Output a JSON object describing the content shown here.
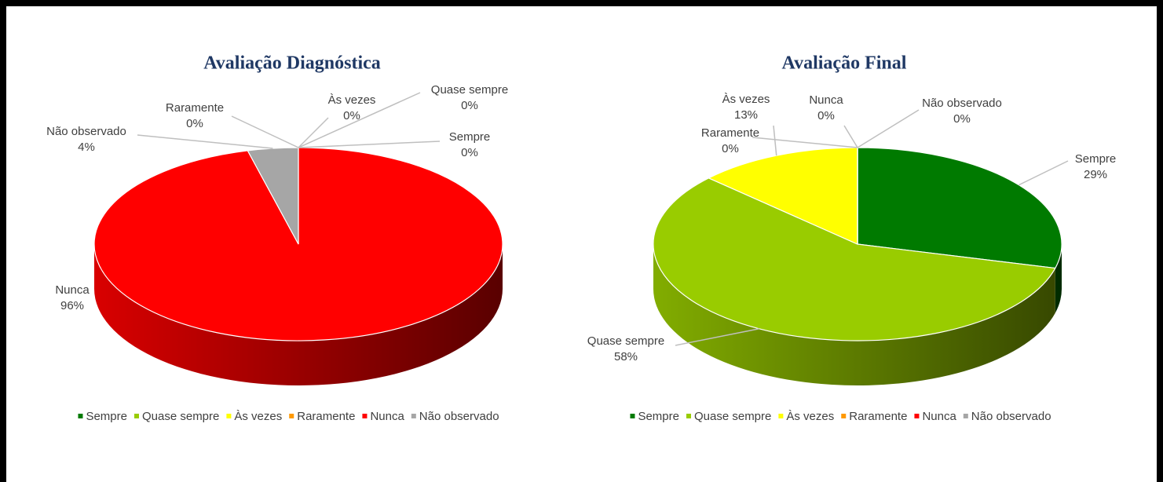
{
  "chart_data": [
    {
      "type": "pie",
      "title": "Avaliação Diagnóstica",
      "categories": [
        "Sempre",
        "Quase sempre",
        "Às vezes",
        "Raramente",
        "Nunca",
        "Não observado"
      ],
      "values": [
        0,
        0,
        0,
        0,
        96,
        4
      ],
      "value_labels": [
        "0%",
        "0%",
        "0%",
        "0%",
        "96%",
        "4%"
      ],
      "colors": [
        "#007a00",
        "#99cc00",
        "#ffff00",
        "#ff9900",
        "#ff0000",
        "#a6a6a6"
      ]
    },
    {
      "type": "pie",
      "title": "Avaliação Final",
      "categories": [
        "Sempre",
        "Quase sempre",
        "Às vezes",
        "Raramente",
        "Nunca",
        "Não observado"
      ],
      "values": [
        29,
        58,
        13,
        0,
        0,
        0
      ],
      "value_labels": [
        "29%",
        "58%",
        "13%",
        "0%",
        "0%",
        "0%"
      ],
      "colors": [
        "#007a00",
        "#99cc00",
        "#ffff00",
        "#ff9900",
        "#ff0000",
        "#a6a6a6"
      ]
    }
  ]
}
